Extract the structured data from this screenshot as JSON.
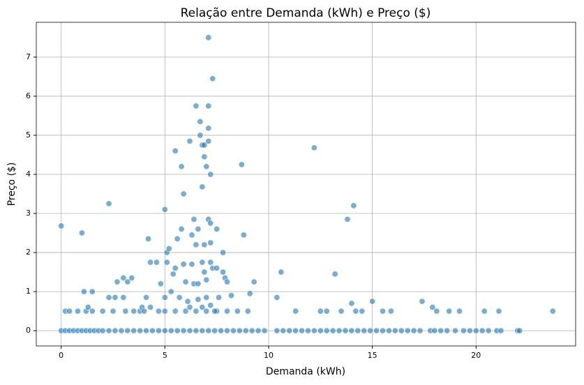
{
  "chart_data": {
    "type": "scatter",
    "title": "Relação entre Demanda (kWh) e Preço ($)",
    "x_label": "Demanda (kWh)",
    "y_label": "Preço ($)",
    "xlim": [
      -1.2,
      24.8
    ],
    "ylim": [
      -0.39,
      7.89
    ],
    "xticks": [
      0,
      5,
      10,
      15,
      20
    ],
    "yticks": [
      0,
      1,
      2,
      3,
      4,
      5,
      6,
      7
    ],
    "grid": true,
    "series": [
      {
        "color": "#1f77b4",
        "x": [
          0,
          0.2,
          0.4,
          0.6,
          0.8,
          1.0,
          1.2,
          1.4,
          1.6,
          1.8,
          2.0,
          2.3,
          2.6,
          2.9,
          3.2,
          3.5,
          3.8,
          4.1,
          4.4,
          4.7,
          5.0,
          5.3,
          5.6,
          5.9,
          6.2,
          6.5,
          6.8,
          7.1,
          7.4,
          7.7,
          8.0,
          8.3,
          8.6,
          8.9,
          9.2,
          9.5,
          9.8,
          10.4,
          10.7,
          11.0,
          11.3,
          11.6,
          11.9,
          12.2,
          12.5,
          12.8,
          13.1,
          13.4,
          13.7,
          14.0,
          14.3,
          14.6,
          14.9,
          15.2,
          15.5,
          15.8,
          16.1,
          16.4,
          16.7,
          17.0,
          17.3,
          17.8,
          18.0,
          18.3,
          18.6,
          19.0,
          19.4,
          19.7,
          20.0,
          20.3,
          20.6,
          21.0,
          21.2,
          22.0,
          22.1,
          0,
          0.2,
          0.4,
          0.8,
          1.0,
          1.1,
          1.2,
          1.3,
          1.5,
          1.5,
          2.0,
          2.3,
          2.3,
          2.6,
          2.7,
          3.0,
          3.0,
          3.2,
          3.4,
          3.1,
          3.5,
          3.8,
          3.9,
          4.1,
          4.2,
          4.3,
          4.3,
          4.6,
          4.7,
          4.8,
          5.0,
          5.0,
          5.1,
          5.1,
          5.2,
          5.3,
          5.4,
          5.5,
          5.5,
          5.6,
          5.7,
          5.8,
          5.8,
          5.9,
          5.9,
          6.0,
          6.1,
          6.2,
          6.3,
          6.3,
          6.4,
          6.4,
          6.5,
          6.5,
          6.6,
          6.6,
          6.7,
          6.7,
          6.8,
          6.8,
          6.8,
          6.9,
          6.9,
          6.9,
          6.9,
          7.0,
          7.0,
          7.0,
          7.1,
          7.1,
          7.1,
          7.1,
          7.1,
          7.2,
          7.2,
          7.2,
          7.2,
          7.3,
          7.3,
          7.5,
          7.5,
          7.6,
          7.8,
          7.8,
          7.9,
          8.0,
          8.2,
          8.7,
          8.8,
          9.3,
          9.1,
          10.4,
          10.6,
          11.3,
          12.2,
          12.5,
          12.8,
          13.2,
          13.5,
          13.8,
          14.1,
          14.0,
          14.2,
          14.5,
          15.0,
          15.5,
          15.9,
          17.4,
          17.9,
          18.1,
          18.7,
          19.2,
          20.4,
          21.1,
          23.7,
          6.0,
          6.5,
          7.0,
          7.5,
          8.0,
          8.5,
          5.5,
          6.8,
          7.2,
          6.6,
          7.4,
          6.2,
          5.0,
          4.0,
          2.5,
          9.0
        ],
        "values": [
          0,
          0,
          0,
          0,
          0,
          0,
          0,
          0,
          0,
          0,
          0,
          0,
          0,
          0,
          0,
          0,
          0,
          0,
          0,
          0,
          0,
          0,
          0,
          0,
          0,
          0,
          0,
          0,
          0,
          0,
          0,
          0,
          0,
          0,
          0,
          0,
          0,
          0,
          0,
          0,
          0,
          0,
          0,
          0,
          0,
          0,
          0,
          0,
          0,
          0,
          0,
          0,
          0,
          0,
          0,
          0,
          0,
          0,
          0,
          0,
          0,
          0,
          0,
          0,
          0,
          0,
          0,
          0,
          0,
          0,
          0,
          0,
          0,
          0,
          0,
          2.68,
          0.5,
          0.5,
          0.5,
          2.5,
          1.0,
          0.5,
          0.6,
          1.0,
          0.5,
          0.5,
          3.25,
          0.85,
          0.85,
          1.25,
          0.85,
          1.35,
          1.25,
          1.35,
          0.5,
          0.5,
          0.5,
          0.6,
          0.85,
          2.35,
          1.75,
          0.6,
          1.75,
          0.5,
          1.2,
          3.1,
          0.85,
          2.0,
          1.75,
          2.1,
          1.0,
          1.45,
          4.6,
          1.6,
          2.35,
          0.85,
          2.6,
          4.2,
          3.5,
          1.7,
          1.25,
          0.75,
          4.85,
          1.7,
          2.45,
          2.85,
          1.2,
          5.75,
          2.2,
          2.6,
          1.2,
          5.35,
          5.0,
          4.75,
          3.68,
          1.75,
          4.75,
          4.45,
          2.2,
          1.5,
          4.2,
          1.3,
          0.85,
          7.5,
          5.75,
          5.18,
          2.85,
          4.85,
          4.0,
          2.75,
          2.25,
          1.75,
          6.45,
          1.6,
          2.6,
          1.6,
          0.85,
          1.5,
          2.0,
          1.35,
          1.25,
          0.9,
          4.25,
          2.45,
          1.25,
          0.95,
          0.85,
          1.5,
          0.5,
          4.68,
          0.5,
          0.5,
          1.45,
          0.5,
          2.85,
          3.2,
          0.7,
          0.5,
          0.5,
          0.75,
          0.5,
          0.5,
          0.75,
          0.6,
          0.5,
          0.5,
          0.5,
          0.5,
          0.5,
          0.5,
          0.5,
          0.5,
          0.5,
          0.5,
          0.5,
          0.5,
          0.5,
          0.6,
          0.65,
          0.8,
          0.5,
          0.6,
          0.5,
          0.5,
          0.5,
          0.5
        ]
      }
    ]
  }
}
